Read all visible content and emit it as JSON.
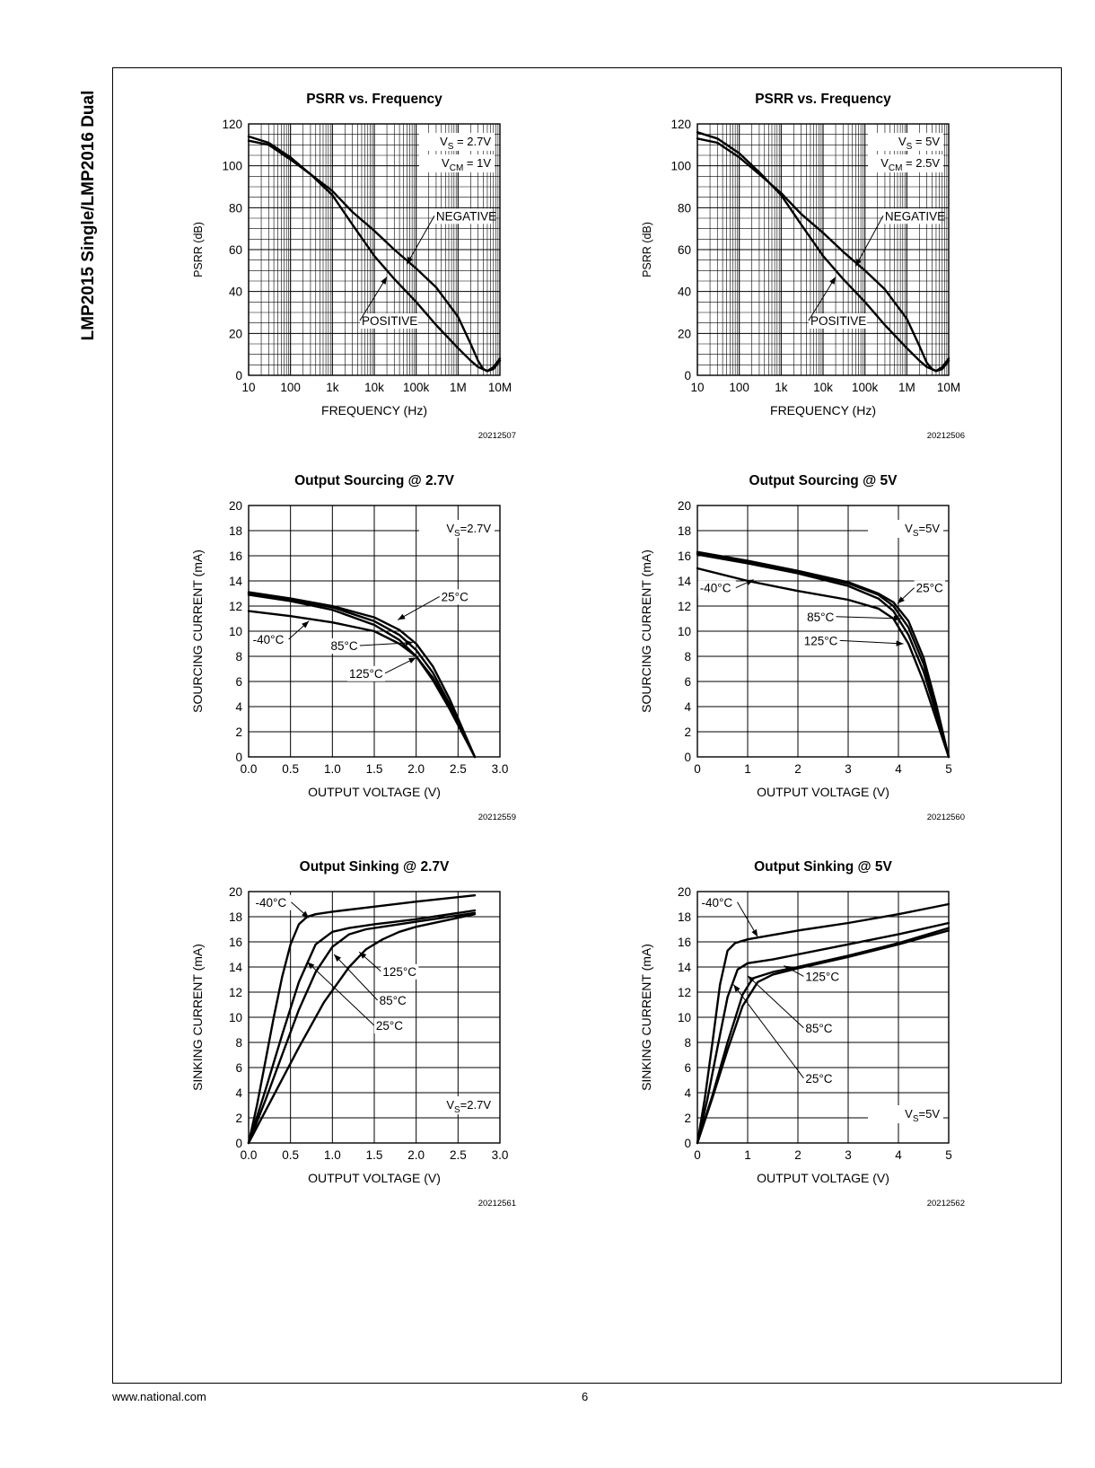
{
  "page": {
    "side_title": "LMP2015 Single/LMP2016 Dual",
    "footer_url": "www.national.com",
    "page_number": "6"
  },
  "chart_data": [
    {
      "id": "psrr-27",
      "type": "line",
      "x_scale": "log",
      "title": "PSRR vs. Frequency",
      "xlabel": "FREQUENCY (Hz)",
      "ylabel": "PSRR (dB)",
      "xlim": [
        10,
        10000000
      ],
      "ylim": [
        0,
        120
      ],
      "x_ticks": [
        10,
        100,
        1000,
        10000,
        100000,
        1000000,
        10000000
      ],
      "x_tick_labels": [
        "10",
        "100",
        "1k",
        "10k",
        "100k",
        "1M",
        "10M"
      ],
      "y_ticks": [
        0,
        20,
        40,
        60,
        80,
        100,
        120
      ],
      "y_tick_labels": [
        "0",
        "20",
        "40",
        "60",
        "80",
        "100",
        "120"
      ],
      "grid": true,
      "conditions": [
        "V_S = 2.7V",
        "V_CM = 1V"
      ],
      "figure_id": "20212507",
      "series": [
        {
          "name": "NEGATIVE",
          "x": [
            10,
            30,
            100,
            300,
            1000,
            3000,
            10000,
            30000,
            100000,
            300000,
            1000000,
            2000000,
            3000000,
            4000000,
            5000000,
            7000000,
            10000000
          ],
          "y": [
            112,
            110,
            103,
            96,
            88,
            78,
            69,
            60,
            51,
            42,
            28,
            15,
            7,
            3,
            2,
            4,
            8
          ]
        },
        {
          "name": "POSITIVE",
          "x": [
            10,
            30,
            100,
            300,
            1000,
            3000,
            10000,
            30000,
            100000,
            300000,
            1000000,
            2000000,
            3000000,
            5000000,
            7000000,
            10000000
          ],
          "y": [
            114,
            111,
            104,
            96,
            86,
            72,
            57,
            46,
            35,
            24,
            13,
            7,
            4,
            2,
            3,
            7
          ]
        }
      ],
      "annotations": [
        {
          "text": "NEGATIVE",
          "x": 300000,
          "y": 74,
          "point_x": 60000,
          "point_y": 53
        },
        {
          "text": "POSITIVE",
          "x": 5000,
          "y": 24,
          "point_x": 20000,
          "point_y": 47
        }
      ]
    },
    {
      "id": "psrr-5",
      "type": "line",
      "x_scale": "log",
      "title": "PSRR vs. Frequency",
      "xlabel": "FREQUENCY (Hz)",
      "ylabel": "PSRR (dB)",
      "xlim": [
        10,
        10000000
      ],
      "ylim": [
        0,
        120
      ],
      "x_ticks": [
        10,
        100,
        1000,
        10000,
        100000,
        1000000,
        10000000
      ],
      "x_tick_labels": [
        "10",
        "100",
        "1k",
        "10k",
        "100k",
        "1M",
        "10M"
      ],
      "y_ticks": [
        0,
        20,
        40,
        60,
        80,
        100,
        120
      ],
      "y_tick_labels": [
        "0",
        "20",
        "40",
        "60",
        "80",
        "100",
        "120"
      ],
      "grid": true,
      "conditions": [
        "V_S = 5V",
        "V_CM = 2.5V"
      ],
      "figure_id": "20212506",
      "series": [
        {
          "name": "NEGATIVE",
          "x": [
            10,
            30,
            100,
            300,
            1000,
            3000,
            10000,
            30000,
            100000,
            300000,
            1000000,
            2000000,
            3000000,
            4000000,
            5000000,
            7000000,
            10000000
          ],
          "y": [
            113,
            111,
            104,
            96,
            87,
            77,
            68,
            59,
            50,
            41,
            27,
            14,
            6,
            3,
            2,
            4,
            8
          ]
        },
        {
          "name": "POSITIVE",
          "x": [
            10,
            30,
            100,
            300,
            1000,
            3000,
            10000,
            30000,
            100000,
            300000,
            1000000,
            2000000,
            3000000,
            5000000,
            7000000,
            10000000
          ],
          "y": [
            116,
            113,
            106,
            97,
            86,
            72,
            57,
            46,
            35,
            24,
            13,
            7,
            4,
            2,
            3,
            7
          ]
        }
      ],
      "annotations": [
        {
          "text": "NEGATIVE",
          "x": 300000,
          "y": 74,
          "point_x": 60000,
          "point_y": 52
        },
        {
          "text": "POSITIVE",
          "x": 5000,
          "y": 24,
          "point_x": 20000,
          "point_y": 47
        }
      ]
    },
    {
      "id": "source-27",
      "type": "line",
      "x_scale": "linear",
      "title": "Output Sourcing @ 2.7V",
      "xlabel": "OUTPUT VOLTAGE (V)",
      "ylabel": "SOURCING CURRENT (mA)",
      "xlim": [
        0,
        3
      ],
      "ylim": [
        0,
        20
      ],
      "x_ticks": [
        0,
        0.5,
        1,
        1.5,
        2,
        2.5,
        3
      ],
      "x_tick_labels": [
        "0.0",
        "0.5",
        "1.0",
        "1.5",
        "2.0",
        "2.5",
        "3.0"
      ],
      "y_ticks": [
        0,
        2,
        4,
        6,
        8,
        10,
        12,
        14,
        16,
        18,
        20
      ],
      "y_tick_labels": [
        "0",
        "2",
        "4",
        "6",
        "8",
        "10",
        "12",
        "14",
        "16",
        "18",
        "20"
      ],
      "grid": true,
      "conditions": [
        "V_S=2.7V"
      ],
      "figure_id": "20212559",
      "series": [
        {
          "name": "-40°C",
          "x": [
            0,
            0.5,
            1.0,
            1.5,
            1.8,
            2.0,
            2.2,
            2.4,
            2.55,
            2.7
          ],
          "y": [
            11.6,
            11.2,
            10.7,
            10.0,
            9.0,
            8.0,
            6.3,
            4.0,
            2.0,
            0
          ]
        },
        {
          "name": "25°C",
          "x": [
            0,
            0.5,
            1.0,
            1.5,
            1.8,
            2.0,
            2.2,
            2.4,
            2.55,
            2.7
          ],
          "y": [
            13.1,
            12.6,
            12.0,
            11.1,
            10.1,
            9.0,
            7.2,
            4.6,
            2.3,
            0
          ]
        },
        {
          "name": "85°C",
          "x": [
            0,
            0.5,
            1.0,
            1.5,
            1.8,
            2.0,
            2.2,
            2.4,
            2.55,
            2.7
          ],
          "y": [
            13.0,
            12.5,
            11.9,
            10.8,
            9.7,
            8.5,
            6.7,
            4.2,
            2.1,
            0
          ]
        },
        {
          "name": "125°C",
          "x": [
            0,
            0.5,
            1.0,
            1.5,
            1.8,
            2.0,
            2.2,
            2.4,
            2.55,
            2.7
          ],
          "y": [
            12.9,
            12.4,
            11.7,
            10.5,
            9.3,
            8.0,
            6.1,
            3.8,
            1.9,
            0
          ]
        }
      ],
      "annotations": [
        {
          "text": "25°C",
          "x": 2.3,
          "y": 12.4,
          "point_x": 1.78,
          "point_y": 10.9
        },
        {
          "text": "-40°C",
          "x": 0.05,
          "y": 9.0,
          "point_x": 0.72,
          "point_y": 10.8
        },
        {
          "text": "85°C",
          "x": 0.98,
          "y": 8.5,
          "point_x": 1.96,
          "point_y": 9.1
        },
        {
          "text": "125°C",
          "x": 1.2,
          "y": 6.3,
          "point_x": 2.0,
          "point_y": 7.9
        }
      ]
    },
    {
      "id": "source-5",
      "type": "line",
      "x_scale": "linear",
      "title": "Output Sourcing @ 5V",
      "xlabel": "OUTPUT VOLTAGE (V)",
      "ylabel": "SOURCING CURRENT (mA)",
      "xlim": [
        0,
        5
      ],
      "ylim": [
        0,
        20
      ],
      "x_ticks": [
        0,
        1,
        2,
        3,
        4,
        5
      ],
      "x_tick_labels": [
        "0",
        "1",
        "2",
        "3",
        "4",
        "5"
      ],
      "y_ticks": [
        0,
        2,
        4,
        6,
        8,
        10,
        12,
        14,
        16,
        18,
        20
      ],
      "y_tick_labels": [
        "0",
        "2",
        "4",
        "6",
        "8",
        "10",
        "12",
        "14",
        "16",
        "18",
        "20"
      ],
      "grid": true,
      "conditions": [
        "V_S=5V"
      ],
      "figure_id": "20212560",
      "series": [
        {
          "name": "-40°C",
          "x": [
            0,
            1,
            2,
            3,
            3.6,
            3.9,
            4.2,
            4.5,
            4.75,
            5
          ],
          "y": [
            15.0,
            14.0,
            13.2,
            12.5,
            11.8,
            11.0,
            9.0,
            6.0,
            3.0,
            0
          ]
        },
        {
          "name": "25°C",
          "x": [
            0,
            1,
            2,
            3,
            3.6,
            3.9,
            4.2,
            4.5,
            4.75,
            5
          ],
          "y": [
            16.3,
            15.6,
            14.8,
            13.9,
            13.0,
            12.3,
            10.8,
            7.9,
            4.2,
            0
          ]
        },
        {
          "name": "85°C",
          "x": [
            0,
            1,
            2,
            3,
            3.6,
            3.9,
            4.2,
            4.5,
            4.75,
            5
          ],
          "y": [
            16.2,
            15.5,
            14.7,
            13.8,
            12.9,
            12.0,
            10.3,
            7.4,
            3.9,
            0
          ]
        },
        {
          "name": "125°C",
          "x": [
            0,
            1,
            2,
            3,
            3.6,
            3.9,
            4.2,
            4.5,
            4.75,
            5
          ],
          "y": [
            16.1,
            15.4,
            14.6,
            13.6,
            12.6,
            11.6,
            9.7,
            6.8,
            3.5,
            0
          ]
        }
      ],
      "annotations": [
        {
          "text": "25°C",
          "x": 4.35,
          "y": 13.1,
          "point_x": 3.98,
          "point_y": 12.2
        },
        {
          "text": "-40°C",
          "x": 0.05,
          "y": 13.1,
          "point_x": 1.12,
          "point_y": 14.1
        },
        {
          "text": "85°C",
          "x": 2.18,
          "y": 10.8,
          "point_x": 4.05,
          "point_y": 11.0
        },
        {
          "text": "125°C",
          "x": 2.12,
          "y": 8.9,
          "point_x": 4.1,
          "point_y": 9.0
        }
      ]
    },
    {
      "id": "sink-27",
      "type": "line",
      "x_scale": "linear",
      "title": "Output Sinking @ 2.7V",
      "xlabel": "OUTPUT VOLTAGE (V)",
      "ylabel": "SINKING CURRENT (mA)",
      "xlim": [
        0,
        3
      ],
      "ylim": [
        0,
        20
      ],
      "x_ticks": [
        0,
        0.5,
        1,
        1.5,
        2,
        2.5,
        3
      ],
      "x_tick_labels": [
        "0.0",
        "0.5",
        "1.0",
        "1.5",
        "2.0",
        "2.5",
        "3.0"
      ],
      "y_ticks": [
        0,
        2,
        4,
        6,
        8,
        10,
        12,
        14,
        16,
        18,
        20
      ],
      "y_tick_labels": [
        "0",
        "2",
        "4",
        "6",
        "8",
        "10",
        "12",
        "14",
        "16",
        "18",
        "20"
      ],
      "grid": true,
      "conditions": [
        "V_S=2.7V"
      ],
      "figure_id": "20212561",
      "series": [
        {
          "name": "-40°C",
          "x": [
            0,
            0.1,
            0.2,
            0.3,
            0.4,
            0.5,
            0.6,
            0.7,
            0.8,
            1.0,
            1.5,
            2.0,
            2.7
          ],
          "y": [
            0,
            3.0,
            6.5,
            10.0,
            13.2,
            15.8,
            17.4,
            18.0,
            18.2,
            18.4,
            18.8,
            19.2,
            19.7
          ]
        },
        {
          "name": "125°C",
          "x": [
            0,
            0.2,
            0.4,
            0.6,
            0.8,
            1.0,
            1.2,
            1.5,
            2.0,
            2.7
          ],
          "y": [
            0,
            4.2,
            8.6,
            12.8,
            15.8,
            16.8,
            17.1,
            17.4,
            17.8,
            18.5
          ]
        },
        {
          "name": "85°C",
          "x": [
            0,
            0.2,
            0.4,
            0.6,
            0.8,
            1.0,
            1.2,
            1.4,
            1.6,
            2.0,
            2.7
          ],
          "y": [
            0,
            3.4,
            7.0,
            10.6,
            13.6,
            15.6,
            16.6,
            17.0,
            17.2,
            17.6,
            18.3
          ]
        },
        {
          "name": "25°C",
          "x": [
            0,
            0.3,
            0.6,
            0.9,
            1.2,
            1.4,
            1.6,
            1.8,
            2.0,
            2.7
          ],
          "y": [
            0,
            3.8,
            7.6,
            11.2,
            14.0,
            15.4,
            16.2,
            16.8,
            17.2,
            18.2
          ]
        }
      ],
      "annotations": [
        {
          "text": "-40°C",
          "x": 0.08,
          "y": 18.8,
          "point_x": 0.72,
          "point_y": 17.9
        },
        {
          "text": "125°C",
          "x": 1.6,
          "y": 13.3,
          "point_x": 1.32,
          "point_y": 15.2
        },
        {
          "text": "85°C",
          "x": 1.56,
          "y": 11.0,
          "point_x": 1.02,
          "point_y": 15.0
        },
        {
          "text": "25°C",
          "x": 1.52,
          "y": 9.0,
          "point_x": 0.7,
          "point_y": 14.4
        }
      ]
    },
    {
      "id": "sink-5",
      "type": "line",
      "x_scale": "linear",
      "title": "Output Sinking @ 5V",
      "xlabel": "OUTPUT VOLTAGE (V)",
      "ylabel": "SINKING CURRENT (mA)",
      "xlim": [
        0,
        5
      ],
      "ylim": [
        0,
        20
      ],
      "x_ticks": [
        0,
        1,
        2,
        3,
        4,
        5
      ],
      "x_tick_labels": [
        "0",
        "1",
        "2",
        "3",
        "4",
        "5"
      ],
      "y_ticks": [
        0,
        2,
        4,
        6,
        8,
        10,
        12,
        14,
        16,
        18,
        20
      ],
      "y_tick_labels": [
        "0",
        "2",
        "4",
        "6",
        "8",
        "10",
        "12",
        "14",
        "16",
        "18",
        "20"
      ],
      "grid": true,
      "conditions": [
        "V_S=5V"
      ],
      "figure_id": "20212562",
      "series": [
        {
          "name": "-40°C",
          "x": [
            0,
            0.15,
            0.3,
            0.45,
            0.6,
            0.75,
            1.0,
            2.0,
            3.0,
            4.0,
            5.0
          ],
          "y": [
            0,
            3.6,
            8.0,
            12.6,
            15.3,
            15.9,
            16.2,
            16.9,
            17.5,
            18.2,
            19.0
          ]
        },
        {
          "name": "125°C",
          "x": [
            0,
            0.2,
            0.4,
            0.6,
            0.8,
            1.0,
            1.5,
            2.0,
            3.0,
            4.0,
            5.0
          ],
          "y": [
            0,
            3.5,
            7.6,
            11.6,
            13.8,
            14.3,
            14.6,
            15.0,
            15.8,
            16.6,
            17.5
          ]
        },
        {
          "name": "85°C",
          "x": [
            0,
            0.3,
            0.6,
            0.9,
            1.1,
            1.5,
            2.0,
            3.0,
            4.0,
            5.0
          ],
          "y": [
            0,
            3.8,
            8.0,
            11.8,
            13.1,
            13.6,
            14.0,
            14.9,
            15.9,
            17.1
          ]
        },
        {
          "name": "25°C",
          "x": [
            0,
            0.3,
            0.6,
            0.9,
            1.2,
            1.5,
            2.0,
            3.0,
            4.0,
            5.0
          ],
          "y": [
            0,
            3.6,
            7.4,
            10.9,
            12.8,
            13.4,
            13.9,
            14.8,
            15.8,
            16.9
          ]
        }
      ],
      "annotations": [
        {
          "text": "-40°C",
          "x": 0.08,
          "y": 18.8,
          "point_x": 1.2,
          "point_y": 16.4
        },
        {
          "text": "125°C",
          "x": 2.15,
          "y": 12.9,
          "point_x": 1.72,
          "point_y": 14.1
        },
        {
          "text": "85°C",
          "x": 2.15,
          "y": 8.8,
          "point_x": 1.0,
          "point_y": 13.3
        },
        {
          "text": "25°C",
          "x": 2.15,
          "y": 4.8,
          "point_x": 0.72,
          "point_y": 12.6
        }
      ]
    }
  ]
}
